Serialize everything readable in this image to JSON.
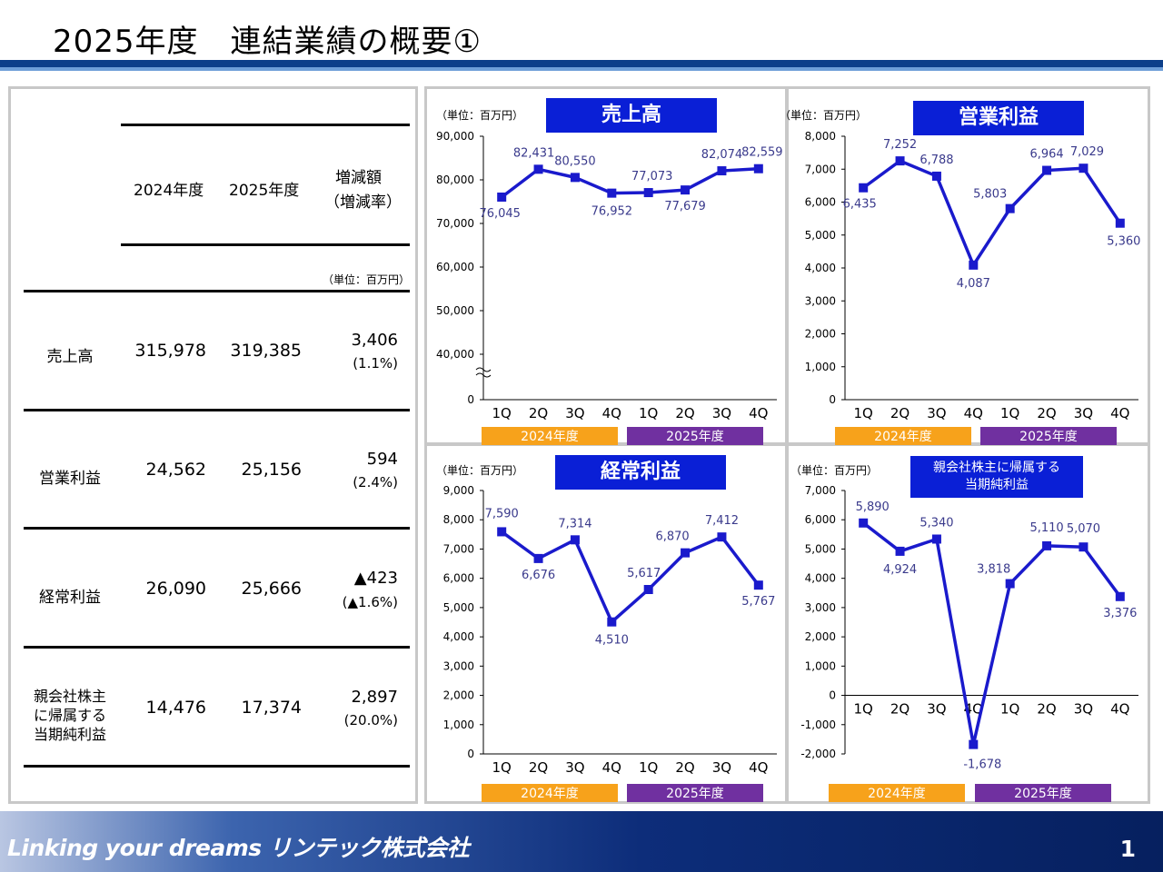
{
  "header": {
    "title": "2025年度　連結業績の概要①"
  },
  "table": {
    "columns": [
      "2024年度",
      "2025年度",
      "増減額",
      "（増減率）"
    ],
    "unit": "（単位：百万円）",
    "rows": [
      {
        "label": "売上高",
        "fy2024": "315,978",
        "fy2025": "319,385",
        "diff": "3,406",
        "rate": "(1.1%)"
      },
      {
        "label": "営業利益",
        "fy2024": "24,562",
        "fy2025": "25,156",
        "diff": "594",
        "rate": "(2.4%)"
      },
      {
        "label": "経常利益",
        "fy2024": "26,090",
        "fy2025": "25,666",
        "diff": "▲423",
        "rate": "(▲1.6%)"
      },
      {
        "label_lines": [
          "親会社株主",
          "に帰属する",
          "当期純利益"
        ],
        "fy2024": "14,476",
        "fy2025": "17,374",
        "diff": "2,897",
        "rate": "(20.0%)"
      }
    ]
  },
  "fiscal_years": [
    "2024年度",
    "2025年度"
  ],
  "colors": {
    "series": "#1a1acc",
    "fy2024_band": "#f7a21b",
    "fy2025_band": "#7030a0",
    "title_box": "#0a1fd6"
  },
  "footer": {
    "tagline": "Linking your dreams リンテック株式会社",
    "page": "1"
  },
  "chart_data": [
    {
      "type": "line",
      "title": "売上高",
      "unit": "（単位：百万円）",
      "categories": [
        "1Q",
        "2Q",
        "3Q",
        "4Q",
        "1Q",
        "2Q",
        "3Q",
        "4Q"
      ],
      "values": [
        76045,
        82431,
        80550,
        76952,
        77073,
        77679,
        82074,
        82559
      ],
      "value_labels": [
        "76,045",
        "82,431",
        "80,550",
        "76,952",
        "77,073",
        "77,679",
        "82,074",
        "82,559"
      ],
      "yticks": [
        "90,000",
        "80,000",
        "70,000",
        "60,000",
        "50,000",
        "40,000",
        "0"
      ],
      "ylim": [
        0,
        90000
      ],
      "axis_break": "between 0 and 40,000"
    },
    {
      "type": "line",
      "title": "営業利益",
      "unit": "（単位：百万円）",
      "categories": [
        "1Q",
        "2Q",
        "3Q",
        "4Q",
        "1Q",
        "2Q",
        "3Q",
        "4Q"
      ],
      "values": [
        6435,
        7252,
        6788,
        4087,
        5803,
        6964,
        7029,
        5360
      ],
      "value_labels": [
        "6,435",
        "7,252",
        "6,788",
        "4,087",
        "5,803",
        "6,964",
        "7,029",
        "5,360"
      ],
      "yticks": [
        "8,000",
        "7,000",
        "6,000",
        "5,000",
        "4,000",
        "3,000",
        "2,000",
        "1,000",
        "0"
      ],
      "ylim": [
        0,
        8000
      ]
    },
    {
      "type": "line",
      "title": "経常利益",
      "unit": "（単位：百万円）",
      "categories": [
        "1Q",
        "2Q",
        "3Q",
        "4Q",
        "1Q",
        "2Q",
        "3Q",
        "4Q"
      ],
      "values": [
        7590,
        6676,
        7314,
        4510,
        5617,
        6870,
        7412,
        5767
      ],
      "value_labels": [
        "7,590",
        "6,676",
        "7,314",
        "4,510",
        "5,617",
        "6,870",
        "7,412",
        "5,767"
      ],
      "yticks": [
        "9,000",
        "8,000",
        "7,000",
        "6,000",
        "5,000",
        "4,000",
        "3,000",
        "2,000",
        "1,000",
        "0"
      ],
      "ylim": [
        0,
        9000
      ]
    },
    {
      "type": "line",
      "title_lines": [
        "親会社株主に帰属する",
        "当期純利益"
      ],
      "unit": "（単位：百万円）",
      "categories": [
        "1Q",
        "2Q",
        "3Q",
        "4Q",
        "1Q",
        "2Q",
        "3Q",
        "4Q"
      ],
      "values": [
        5890,
        4924,
        5340,
        -1678,
        3818,
        5110,
        5070,
        3376
      ],
      "value_labels": [
        "5,890",
        "4,924",
        "5,340",
        "-1,678",
        "3,818",
        "5,110",
        "5,070",
        "3,376"
      ],
      "yticks": [
        "7,000",
        "6,000",
        "5,000",
        "4,000",
        "3,000",
        "2,000",
        "1,000",
        "0",
        "-1,000",
        "-2,000"
      ],
      "ylim": [
        -2000,
        7000
      ]
    }
  ]
}
